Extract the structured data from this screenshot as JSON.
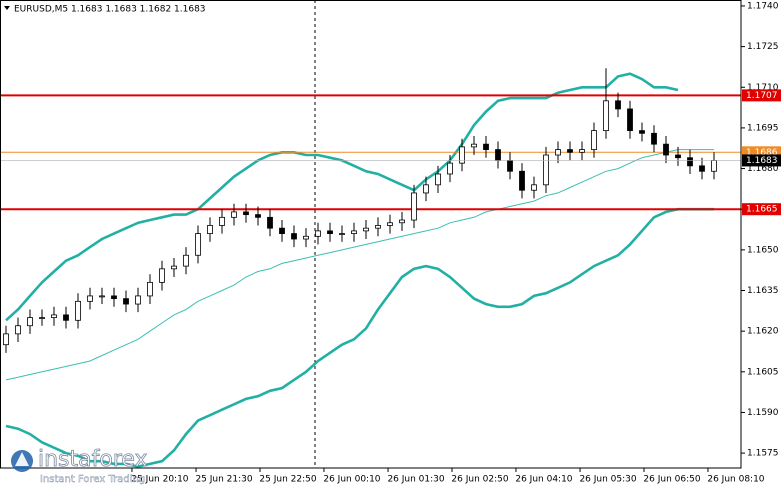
{
  "chart_data": {
    "type": "candlestick",
    "title": "EURUSD,M5  1.1683 1.1683 1.1682 1.1683",
    "open": [
      1.1615,
      1.1619,
      1.1622,
      1.1625,
      1.1625,
      1.1626,
      1.1624,
      1.1631,
      1.1633,
      1.1633,
      1.1632,
      1.163,
      1.1633,
      1.1638,
      1.1643,
      1.1644,
      1.1648,
      1.1656,
      1.1659,
      1.1662,
      1.1664,
      1.1663,
      1.1662,
      1.1658,
      1.1656,
      1.1654,
      1.1655,
      1.1657,
      1.1656,
      1.1656,
      1.1657,
      1.1658,
      1.1659,
      1.166,
      1.1661,
      1.1671,
      1.1674,
      1.1678,
      1.1682,
      1.1688,
      1.1689,
      1.1687,
      1.1683,
      1.1679,
      1.1672,
      1.1674,
      1.1685,
      1.1687,
      1.1686,
      1.1687,
      1.1694,
      1.1705,
      1.1702,
      1.1694,
      1.1693,
      1.1689,
      1.1685,
      1.1684,
      1.1681,
      1.1679
    ],
    "high": [
      1.1622,
      1.1625,
      1.1628,
      1.1628,
      1.1629,
      1.1629,
      1.1634,
      1.1636,
      1.1636,
      1.1636,
      1.1635,
      1.1636,
      1.1641,
      1.1646,
      1.1647,
      1.1651,
      1.1659,
      1.1662,
      1.1665,
      1.1667,
      1.1667,
      1.1666,
      1.1665,
      1.1661,
      1.1659,
      1.1658,
      1.166,
      1.166,
      1.1659,
      1.166,
      1.1661,
      1.1662,
      1.1663,
      1.1664,
      1.1674,
      1.1677,
      1.1681,
      1.1685,
      1.1691,
      1.1692,
      1.1692,
      1.169,
      1.1686,
      1.1682,
      1.1677,
      1.1688,
      1.169,
      1.169,
      1.169,
      1.1697,
      1.1717,
      1.1708,
      1.1705,
      1.1697,
      1.1696,
      1.1692,
      1.1688,
      1.1687,
      1.1684,
      1.1686
    ],
    "low": [
      1.1612,
      1.1616,
      1.1619,
      1.1622,
      1.1622,
      1.1621,
      1.1621,
      1.1628,
      1.163,
      1.1629,
      1.1627,
      1.1627,
      1.163,
      1.1635,
      1.164,
      1.1641,
      1.1645,
      1.1653,
      1.1656,
      1.1659,
      1.166,
      1.1659,
      1.1655,
      1.1653,
      1.1651,
      1.1651,
      1.1652,
      1.1653,
      1.1653,
      1.1653,
      1.1654,
      1.1655,
      1.1656,
      1.1657,
      1.1658,
      1.1668,
      1.1671,
      1.1675,
      1.1679,
      1.1685,
      1.1684,
      1.168,
      1.1676,
      1.1669,
      1.1669,
      1.1671,
      1.1682,
      1.1683,
      1.1683,
      1.1684,
      1.1691,
      1.1699,
      1.1691,
      1.169,
      1.1686,
      1.1682,
      1.1681,
      1.1678,
      1.1676,
      1.1676
    ],
    "close": [
      1.1619,
      1.1622,
      1.1625,
      1.1625,
      1.1626,
      1.1624,
      1.1631,
      1.1633,
      1.1633,
      1.1632,
      1.163,
      1.1633,
      1.1638,
      1.1643,
      1.1644,
      1.1648,
      1.1656,
      1.1659,
      1.1662,
      1.1664,
      1.1663,
      1.1662,
      1.1658,
      1.1656,
      1.1654,
      1.1655,
      1.1657,
      1.1656,
      1.1656,
      1.1657,
      1.1658,
      1.1659,
      1.166,
      1.1661,
      1.1671,
      1.1674,
      1.1678,
      1.1682,
      1.1688,
      1.1689,
      1.1687,
      1.1683,
      1.1679,
      1.1672,
      1.1674,
      1.1685,
      1.1687,
      1.1686,
      1.1687,
      1.1694,
      1.1705,
      1.1702,
      1.1694,
      1.1693,
      1.1689,
      1.1685,
      1.1684,
      1.1681,
      1.1679,
      1.1683
    ],
    "series": [
      {
        "color": "#22b0a4",
        "values": [
          1.1624,
          1.1628,
          1.1633,
          1.1638,
          1.1642,
          1.1646,
          1.1648,
          1.1651,
          1.1654,
          1.1656,
          1.1658,
          1.166,
          1.1661,
          1.1662,
          1.1663,
          1.1663,
          1.1665,
          1.1669,
          1.1673,
          1.1677,
          1.168,
          1.1683,
          1.1685,
          1.1686,
          1.1686,
          1.1685,
          1.1685,
          1.1684,
          1.1683,
          1.1681,
          1.1679,
          1.1678,
          1.1676,
          1.1674,
          1.1672,
          1.1676,
          1.1679,
          1.1683,
          1.1689,
          1.1696,
          1.1701,
          1.1705,
          1.1706,
          1.1706,
          1.1706,
          1.1706,
          1.1708,
          1.1709,
          1.171,
          1.171,
          1.171,
          1.1714,
          1.1715,
          1.1713,
          1.171,
          1.171,
          1.1709,
          null,
          null,
          null
        ]
      },
      {
        "color": "#22b0a4",
        "values": [
          1.1585,
          1.1584,
          1.1582,
          1.1579,
          1.1577,
          1.1575,
          1.1574,
          1.1572,
          1.1572,
          1.1571,
          1.1571,
          1.157,
          1.1571,
          1.1572,
          1.1576,
          1.1582,
          1.1587,
          1.1589,
          1.1591,
          1.1593,
          1.1595,
          1.1596,
          1.1598,
          1.1599,
          1.1602,
          1.1605,
          1.1609,
          1.1612,
          1.1615,
          1.1617,
          1.1621,
          1.1628,
          1.1634,
          1.164,
          1.1643,
          1.1644,
          1.1643,
          1.164,
          1.1636,
          1.1632,
          1.163,
          1.1629,
          1.1629,
          1.163,
          1.1633,
          1.1634,
          1.1636,
          1.1638,
          1.1641,
          1.1644,
          1.1646,
          1.1648,
          1.1652,
          1.1657,
          1.1662,
          1.1664,
          1.1665,
          1.1665,
          1.1665,
          1.1665
        ]
      },
      {
        "color": "#3cbfb4",
        "values": [
          1.1602,
          1.1603,
          1.1604,
          1.1605,
          1.1606,
          1.1607,
          1.1608,
          1.1609,
          1.1611,
          1.1613,
          1.1615,
          1.1617,
          1.162,
          1.1623,
          1.1626,
          1.1628,
          1.1631,
          1.1633,
          1.1635,
          1.1637,
          1.164,
          1.1642,
          1.1643,
          1.1645,
          1.1646,
          1.1647,
          1.1648,
          1.1649,
          1.165,
          1.1651,
          1.1652,
          1.1653,
          1.1654,
          1.1655,
          1.1656,
          1.1657,
          1.1658,
          1.166,
          1.1661,
          1.1662,
          1.1664,
          1.1665,
          1.1666,
          1.1667,
          1.1668,
          1.167,
          1.1671,
          1.1673,
          1.1675,
          1.1677,
          1.1679,
          1.168,
          1.1682,
          1.1684,
          1.1685,
          1.1686,
          1.1687,
          1.1687,
          1.1687,
          1.1687
        ]
      }
    ],
    "levels": [
      {
        "value": 1.1707,
        "color": "#e00000"
      },
      {
        "value": 1.1686,
        "color": "#f08c28"
      },
      {
        "value": 1.1665,
        "color": "#e00000"
      }
    ],
    "current_price": 1.1683,
    "ylim": [
      1.15695,
      1.17422
    ],
    "yticks": [
      {
        "value": 1.174,
        "label": "1.1740"
      },
      1.1725,
      {
        "value": 1.171,
        "label": "1.1710"
      },
      1.1695,
      {
        "value": 1.168,
        "label": "1.1680"
      },
      1.1665,
      {
        "value": 1.165,
        "label": "1.1650"
      },
      1.1635,
      {
        "value": 1.162,
        "label": "1.1620"
      },
      1.1605,
      {
        "value": 1.159,
        "label": "1.1590"
      },
      1.1575
    ],
    "xlim": [
      -0.5,
      61.25
    ],
    "xticks": [
      {
        "value": 12.83,
        "label": "25 Jun 20:10"
      },
      {
        "value": 18.17,
        "label": "25 Jun 21:30"
      },
      {
        "value": 23.5,
        "label": "25 Jun 22:50"
      },
      {
        "value": 28.83,
        "label": "26 Jun 00:10"
      },
      {
        "value": 34.17,
        "label": "26 Jun 01:30"
      },
      {
        "value": 39.5,
        "label": "26 Jun 02:50"
      },
      {
        "value": 44.83,
        "label": "26 Jun 04:10"
      },
      {
        "value": 50.17,
        "label": "26 Jun 05:30"
      },
      {
        "value": 55.5,
        "label": "26 Jun 06:50"
      },
      {
        "value": 60.83,
        "label": "26 Jun 08:10"
      }
    ],
    "watermark": {
      "brand": "instaforex",
      "slogan": "Instant Forex Trading"
    }
  }
}
